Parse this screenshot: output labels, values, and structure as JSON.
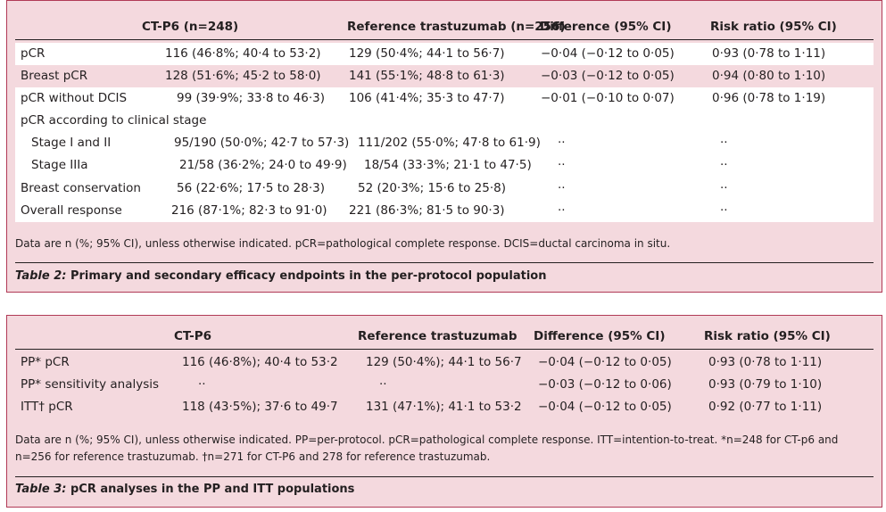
{
  "table2": {
    "headers": {
      "col1": "CT-P6 (n=248)",
      "col2": "Reference trastuzumab (n=256)",
      "col3": "Difference (95% CI)",
      "col4": "Risk ratio (95% CI)"
    },
    "rows": [
      {
        "label": "pCR",
        "c1": "116 (46·8%; 40·4 to 53·2)",
        "c2": "129 (50·4%; 44·1 to 56·7)",
        "c3": "−0·04 (−0·12 to 0·05)",
        "c4": "0·93 (0·78 to 1·11)"
      },
      {
        "label": "Breast pCR",
        "c1": "128 (51·6%; 45·2 to 58·0)",
        "c2": "141 (55·1%; 48·8 to 61·3)",
        "c3": "−0·03 (−0·12 to 0·05)",
        "c4": "0·94 (0·80 to 1·10)"
      },
      {
        "label": "pCR without DCIS",
        "c1": "99 (39·9%; 33·8 to 46·3)",
        "c2": "106 (41·4%; 35·3 to 47·7)",
        "c3": "−0·01 (−0·10 to 0·07)",
        "c4": "0·96 (0·78 to 1·19)"
      },
      {
        "label": "pCR according to clinical stage",
        "c1": "",
        "c2": "",
        "c3": "",
        "c4": ""
      },
      {
        "label": "Stage I and II",
        "c1": "95/190 (50·0%; 42·7 to 57·3)",
        "c2": "111/202 (55·0%; 47·8 to 61·9)",
        "c3": "··",
        "c4": "··"
      },
      {
        "label": "Stage IIIa",
        "c1": "21/58 (36·2%; 24·0 to 49·9)",
        "c2": "18/54 (33·3%; 21·1 to 47·5)",
        "c3": "··",
        "c4": "··"
      },
      {
        "label": "Breast conservation",
        "c1": "56 (22·6%; 17·5 to 28·3)",
        "c2": "52 (20·3%; 15·6 to 25·8)",
        "c3": "··",
        "c4": "··"
      },
      {
        "label": "Overall response",
        "c1": "216 (87·1%; 82·3 to 91·0)",
        "c2": "221 (86·3%; 81·5 to 90·3)",
        "c3": "··",
        "c4": "··"
      }
    ],
    "note": "Data are n (%; 95% CI), unless otherwise indicated. pCR=pathological complete response. DCIS=ductal carcinoma in situ.",
    "caption_label": "Table 2:",
    "caption_text": " Primary and secondary efficacy endpoints in the per-protocol population"
  },
  "table3": {
    "headers": {
      "col1": "CT-P6",
      "col2": "Reference trastuzumab",
      "col3": "Difference (95% CI)",
      "col4": "Risk ratio (95% CI)"
    },
    "rows": [
      {
        "label": "PP* pCR",
        "c1": "116 (46·8%); 40·4 to 53·2",
        "c2": "129 (50·4%); 44·1 to 56·7",
        "c3": "−0·04 (−0·12 to 0·05)",
        "c4": "0·93 (0·78 to 1·11)"
      },
      {
        "label": "PP* sensitivity analysis",
        "c1": "··",
        "c2": "··",
        "c3": "−0·03 (−0·12 to 0·06)",
        "c4": "0·93 (0·79 to 1·10)"
      },
      {
        "label": "ITT† pCR",
        "c1": "118 (43·5%); 37·6 to 49·7",
        "c2": "131 (47·1%); 41·1 to 53·2",
        "c3": "−0·04 (−0·12 to 0·05)",
        "c4": "0·92 (0·77 to 1·11)"
      }
    ],
    "note": "Data are n (%; 95% CI), unless otherwise indicated. PP=per-protocol. pCR=pathological complete response. ITT=intention-to-treat. *n=248 for CT-p6 and n=256 for reference trastuzumab. †n=271 for CT-P6 and 278 for reference trastuzumab.",
    "caption_label": "Table 3:",
    "caption_text": " pCR analyses in the PP and ITT populations"
  }
}
